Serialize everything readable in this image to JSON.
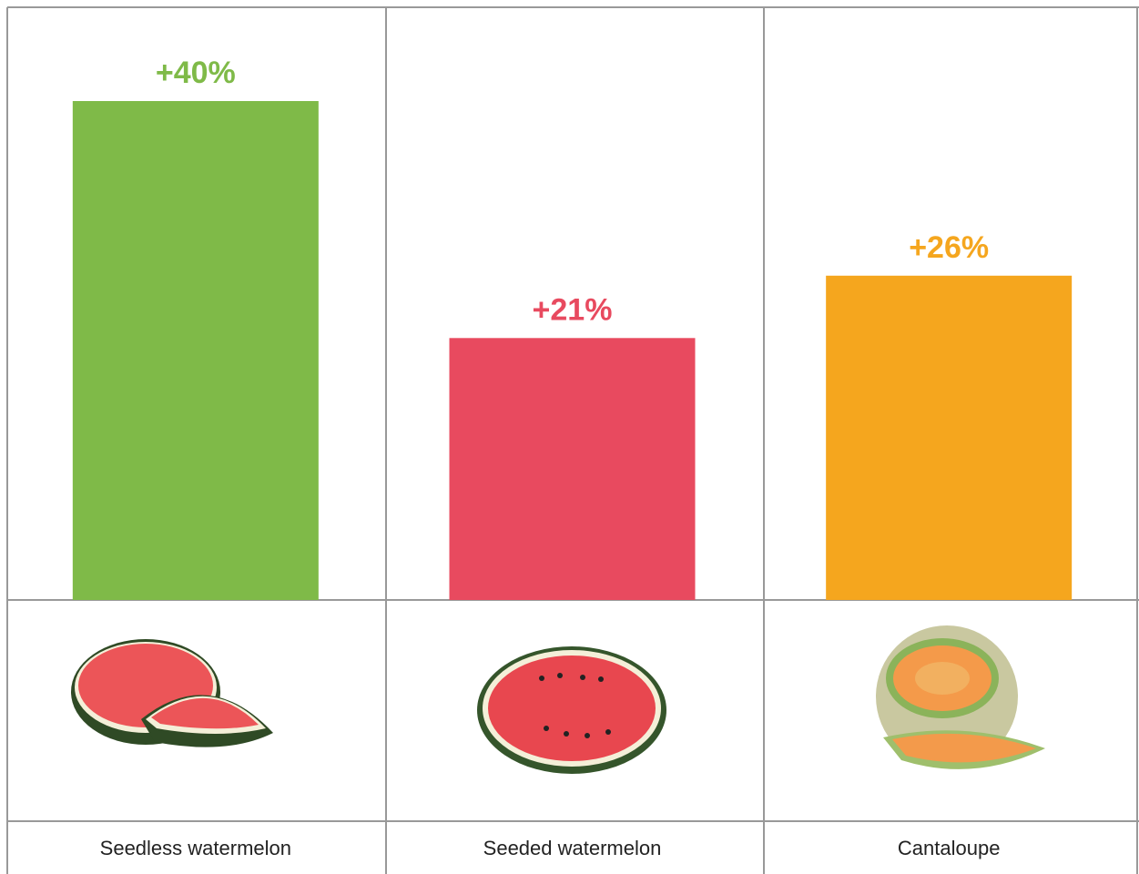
{
  "chart_data": {
    "type": "bar",
    "categories": [
      "Seedless watermelon",
      "Seeded watermelon",
      "Cantaloupe"
    ],
    "values": [
      40,
      21,
      26
    ],
    "value_labels": [
      "+40%",
      "+21%",
      "+26%"
    ],
    "colors": [
      "#7fba48",
      "#e84a5f",
      "#f5a61e"
    ]
  }
}
